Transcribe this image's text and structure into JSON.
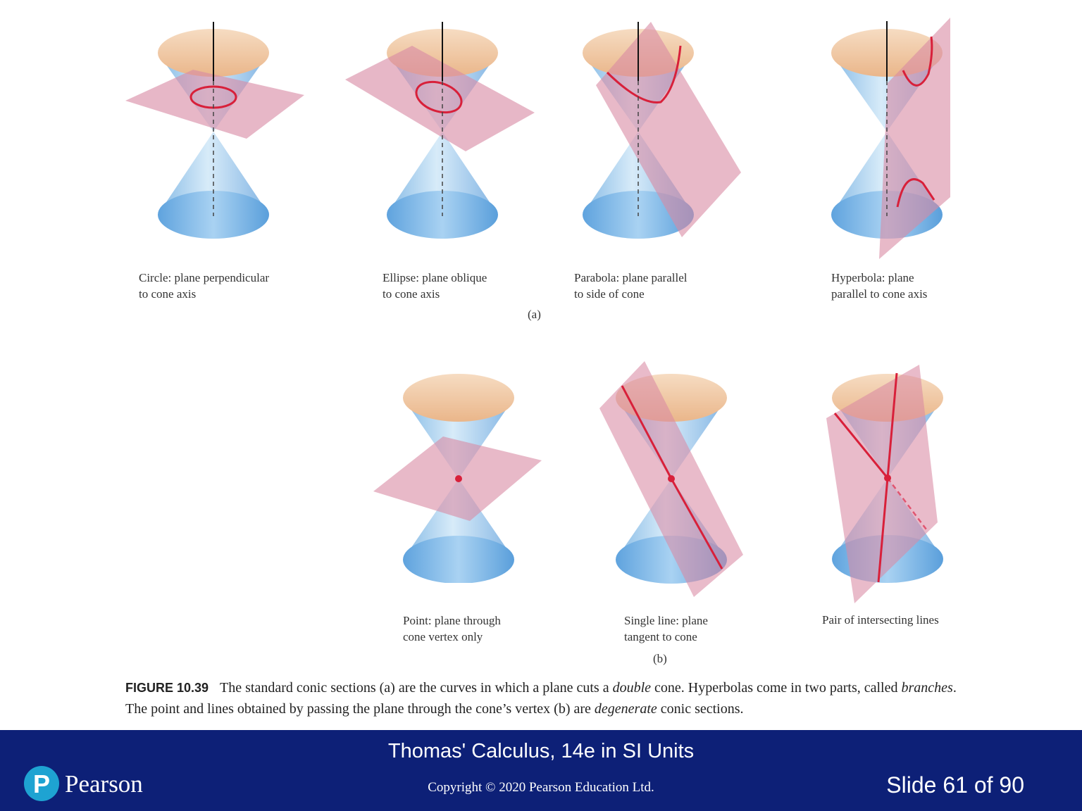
{
  "part_a": {
    "label": "(a)",
    "panels": [
      {
        "id": "circle",
        "caption": "Circle: plane perpendicular\nto cone axis"
      },
      {
        "id": "ellipse",
        "caption": "Ellipse: plane oblique\nto cone axis"
      },
      {
        "id": "parabola",
        "caption": "Parabola: plane parallel\nto side of cone"
      },
      {
        "id": "hyperbola",
        "caption": "Hyperbola: plane\nparallel to cone axis"
      }
    ]
  },
  "part_b": {
    "label": "(b)",
    "panels": [
      {
        "id": "point",
        "caption": "Point: plane through\ncone vertex only"
      },
      {
        "id": "single-line",
        "caption": "Single line: plane\ntangent to cone"
      },
      {
        "id": "pair-lines",
        "caption": "Pair of intersecting lines"
      }
    ]
  },
  "figure_caption": {
    "number": "FIGURE 10.39",
    "p1": "The standard conic sections (a) are the curves in which a plane cuts a ",
    "em1": "double",
    "p2": " cone. Hyperbolas come in two parts, called ",
    "em2": "branches",
    "p3": ". The point and lines obtained by passing the plane through the cone’s vertex (b) are ",
    "em3": "degenerate",
    "p4": " conic sections."
  },
  "footer": {
    "title": "Thomas' Calculus, 14e in SI Units",
    "copyright": "Copyright © 2020 Pearson Education Ltd.",
    "slide": "Slide 61 of 90",
    "logo_letter": "P",
    "brand": "Pearson"
  },
  "colors": {
    "cone_blue": "#8cc3ea",
    "cone_inner": "#f1c9a3",
    "plane_pink": "#d98aa4",
    "curve_red": "#d8203a",
    "footer_navy": "#0d2077",
    "logo_cyan": "#1ea3d2"
  }
}
